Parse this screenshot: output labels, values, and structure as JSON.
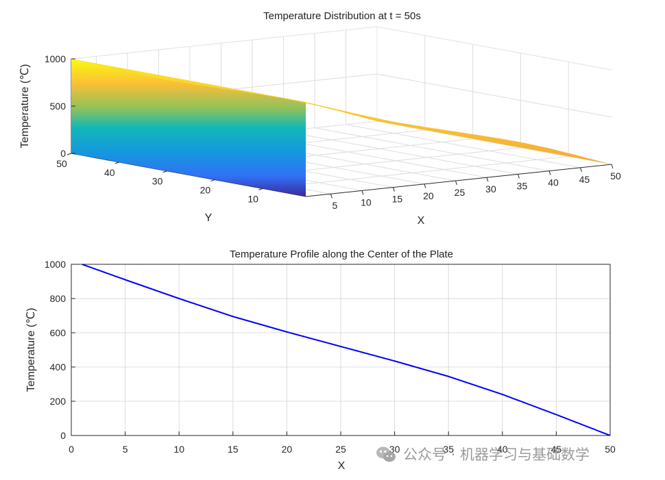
{
  "watermark": {
    "text": "公众号 · 机器学习与基础数学",
    "icon": "wechat-icon"
  },
  "chart_data": [
    {
      "type": "surface",
      "title": "Temperature Distribution at t = 50s",
      "xlabel": "X",
      "ylabel": "Y",
      "zlabel": "Temperature (℃)",
      "xlim": [
        1,
        50
      ],
      "ylim": [
        1,
        50
      ],
      "zlim": [
        0,
        1000
      ],
      "xticks": [
        5,
        10,
        15,
        20,
        25,
        30,
        35,
        40,
        45,
        50
      ],
      "yticks": [
        10,
        20,
        30,
        40,
        50
      ],
      "zticks": [
        0,
        500,
        1000
      ],
      "colormap": "parula",
      "grid": true,
      "profile_along_x": {
        "x": [
          1,
          5,
          10,
          15,
          20,
          25,
          30,
          35,
          40,
          45,
          50
        ],
        "z": [
          1000,
          910,
          800,
          695,
          605,
          520,
          435,
          345,
          240,
          122,
          0
        ]
      }
    },
    {
      "type": "line",
      "title": "Temperature Profile along the Center of the Plate",
      "xlabel": "X",
      "ylabel": "Temperature (℃)",
      "xlim": [
        0,
        50
      ],
      "ylim": [
        0,
        1000
      ],
      "xticks": [
        0,
        5,
        10,
        15,
        20,
        25,
        30,
        35,
        40,
        45,
        50
      ],
      "yticks": [
        0,
        200,
        400,
        600,
        800,
        1000
      ],
      "grid": true,
      "color": "#0000ff",
      "series": [
        {
          "x": [
            1,
            5,
            10,
            15,
            20,
            25,
            30,
            35,
            40,
            45,
            50
          ],
          "y": [
            1000,
            910,
            800,
            695,
            605,
            520,
            435,
            345,
            240,
            122,
            0
          ]
        }
      ]
    }
  ]
}
